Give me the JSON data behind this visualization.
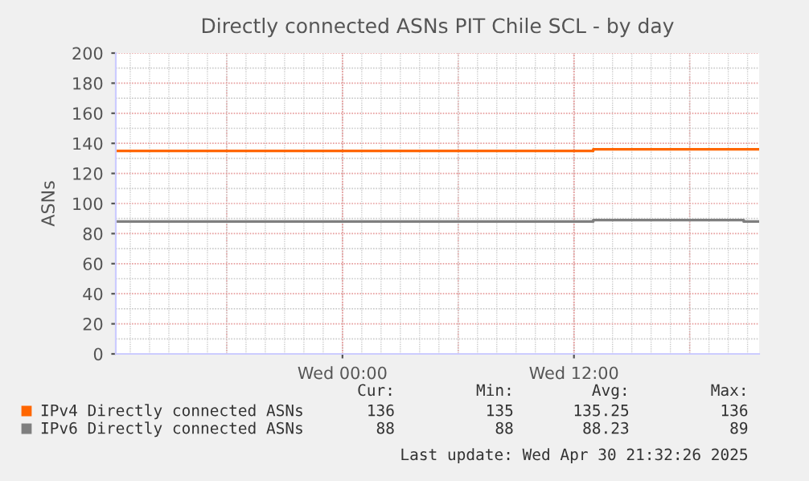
{
  "chart_data": {
    "type": "step",
    "title": "Directly connected ASNs PIT Chile SCL - by day",
    "ylabel": "ASNs",
    "xlim": [
      "2025-04-29T12:15",
      "2025-04-30T21:36"
    ],
    "xticks": [
      {
        "value": "2025-04-30T00:00",
        "label": "Wed 00:00"
      },
      {
        "value": "2025-04-30T12:00",
        "label": "Wed 12:00"
      }
    ],
    "ylim": [
      0,
      200
    ],
    "yticks": [
      0,
      20,
      40,
      60,
      80,
      100,
      120,
      140,
      160,
      180,
      200
    ],
    "grid": true,
    "legend": "bottom",
    "series": [
      {
        "name": "IPv4 Directly connected ASNs",
        "color": "#ff6600",
        "x": [
          "2025-04-29T12:15",
          "2025-04-30T13:00",
          "2025-04-30T21:36"
        ],
        "values": [
          135,
          136,
          136
        ]
      },
      {
        "name": "IPv6 Directly connected ASNs",
        "color": "#7f7f7f",
        "x": [
          "2025-04-29T12:15",
          "2025-04-30T13:00",
          "2025-04-30T20:48",
          "2025-04-30T21:36"
        ],
        "values": [
          88,
          89,
          88,
          88
        ]
      }
    ],
    "annotations": [
      "Cur:",
      "Min:",
      "Avg:",
      "Max:",
      "136",
      "135",
      "135.25",
      "136",
      "88",
      "88",
      "88.23",
      "89",
      "Last update: Wed Apr 30 21:32:26 2025"
    ]
  }
}
